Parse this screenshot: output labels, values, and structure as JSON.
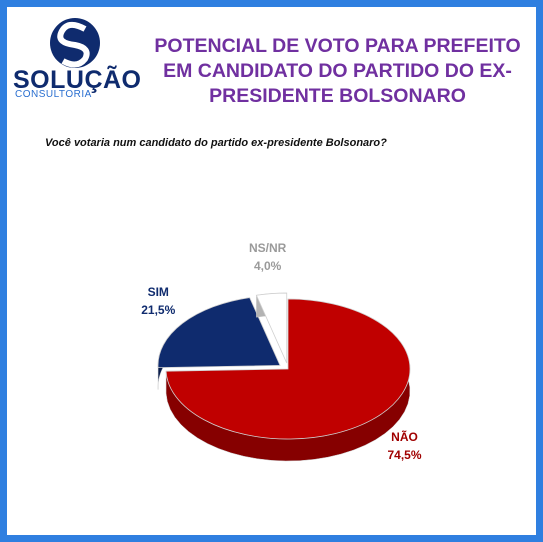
{
  "logo": {
    "name": "SOLUÇÃO",
    "tagline": "CONSULTORIA"
  },
  "chart_data": {
    "type": "pie",
    "title": "POTENCIAL DE VOTO PARA PREFEITO EM CANDIDATO DO PARTIDO DO EX-PRESIDENTE BOLSONARO",
    "subtitle": "Você votaria num candidato do partido ex-presidente Bolsonaro?",
    "categories": [
      "NÃO",
      "SIM",
      "NS/NR"
    ],
    "values": [
      74.5,
      21.5,
      4.0
    ],
    "value_labels": [
      "74,5%",
      "21,5%",
      "4,0%"
    ],
    "colors": [
      "#c00000",
      "#0f2b6e",
      "#ffffff"
    ],
    "label_colors": [
      "#a00000",
      "#0f2b6e",
      "#9a9a9a"
    ]
  }
}
